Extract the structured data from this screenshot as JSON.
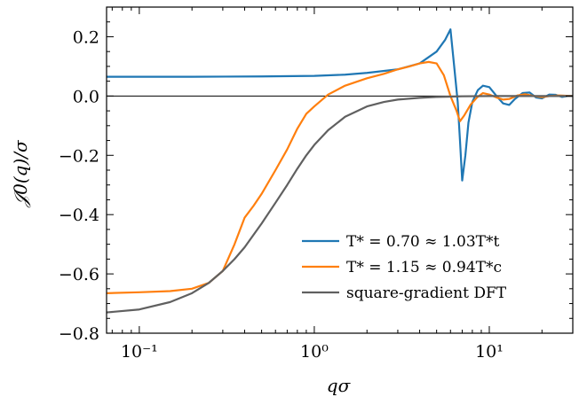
{
  "chart_data": {
    "type": "line",
    "xscale": "log",
    "xlim": [
      0.065,
      30
    ],
    "ylim": [
      -0.8,
      0.3
    ],
    "xlabel": "qσ",
    "ylabel": "𝒥0(q)/σ",
    "xticks": [
      {
        "value": 0.1,
        "label": "10⁻¹"
      },
      {
        "value": 1,
        "label": "10⁰"
      },
      {
        "value": 10,
        "label": "10¹"
      }
    ],
    "yticks": [
      {
        "value": 0.2,
        "label": "0.2"
      },
      {
        "value": 0.0,
        "label": "0.0"
      },
      {
        "value": -0.2,
        "label": "−0.2"
      },
      {
        "value": -0.4,
        "label": "−0.4"
      },
      {
        "value": -0.6,
        "label": "−0.6"
      },
      {
        "value": -0.8,
        "label": "−0.8"
      }
    ],
    "zero_line": 0.0,
    "legend": "lower-right",
    "series": [
      {
        "name": "T* = 0.70 ≈ 1.03T*t",
        "color": "#1f77b4",
        "x": [
          0.065,
          0.1,
          0.2,
          0.5,
          1.0,
          1.5,
          2.0,
          3.0,
          4.0,
          5.0,
          5.6,
          6.0,
          6.3,
          6.6,
          6.8,
          7.0,
          7.3,
          7.6,
          8.0,
          8.6,
          9.2,
          10.0,
          11.0,
          12.0,
          13.0,
          14.0,
          15.5,
          17.0,
          18.5,
          20.0,
          22.0,
          24.0,
          26.0,
          28.0,
          30.0
        ],
        "y": [
          0.065,
          0.065,
          0.065,
          0.066,
          0.068,
          0.072,
          0.078,
          0.09,
          0.11,
          0.15,
          0.19,
          0.225,
          0.1,
          -0.02,
          -0.15,
          -0.285,
          -0.2,
          -0.09,
          -0.02,
          0.02,
          0.035,
          0.03,
          0.0,
          -0.025,
          -0.03,
          -0.01,
          0.01,
          0.012,
          -0.005,
          -0.008,
          0.005,
          0.004,
          -0.003,
          0.0,
          0.0
        ]
      },
      {
        "name": "T* = 1.15 ≈ 0.94T*c",
        "color": "#ff7f0e",
        "x": [
          0.065,
          0.1,
          0.15,
          0.2,
          0.25,
          0.3,
          0.35,
          0.4,
          0.45,
          0.5,
          0.6,
          0.7,
          0.8,
          0.9,
          1.0,
          1.2,
          1.5,
          2.0,
          2.5,
          3.0,
          3.5,
          4.0,
          4.5,
          5.0,
          5.5,
          6.0,
          6.5,
          6.8,
          7.2,
          7.8,
          8.5,
          9.2,
          10.0,
          11.0,
          12.0,
          13.0,
          14.5,
          16.0,
          18.0,
          20.0,
          22.0,
          25.0,
          30.0
        ],
        "y": [
          -0.665,
          -0.662,
          -0.658,
          -0.65,
          -0.63,
          -0.59,
          -0.5,
          -0.41,
          -0.37,
          -0.33,
          -0.25,
          -0.18,
          -0.11,
          -0.06,
          -0.035,
          0.005,
          0.035,
          0.06,
          0.075,
          0.09,
          0.1,
          0.11,
          0.115,
          0.11,
          0.07,
          0.0,
          -0.05,
          -0.085,
          -0.065,
          -0.03,
          -0.005,
          0.01,
          0.005,
          -0.005,
          -0.012,
          -0.01,
          0.002,
          0.006,
          0.0,
          -0.004,
          0.0,
          0.002,
          0.0
        ]
      },
      {
        "name": "square-gradient DFT",
        "color": "#606060",
        "x": [
          0.065,
          0.1,
          0.15,
          0.2,
          0.25,
          0.3,
          0.35,
          0.4,
          0.5,
          0.6,
          0.7,
          0.8,
          0.9,
          1.0,
          1.2,
          1.5,
          2.0,
          2.5,
          3.0,
          4.0,
          5.0,
          7.0,
          10.0,
          15.0,
          30.0
        ],
        "y": [
          -0.73,
          -0.72,
          -0.695,
          -0.665,
          -0.63,
          -0.59,
          -0.55,
          -0.51,
          -0.43,
          -0.36,
          -0.3,
          -0.245,
          -0.2,
          -0.165,
          -0.115,
          -0.07,
          -0.035,
          -0.02,
          -0.012,
          -0.006,
          -0.003,
          -0.001,
          0.0,
          0.0,
          0.0
        ]
      }
    ]
  }
}
